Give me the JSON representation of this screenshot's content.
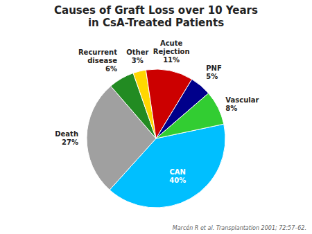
{
  "chart_data": {
    "type": "pie",
    "title": "Causes of Graft Loss over 10 Years",
    "subtitle": "in CsA-Treated Patients",
    "categories": [
      "CAN",
      "Death",
      "Recurrent disease",
      "Other",
      "Acute Rejection",
      "PNF",
      "Vascular"
    ],
    "values": [
      40,
      27,
      6,
      3,
      11,
      5,
      8
    ],
    "value_labels": [
      "40%",
      "27%",
      "6%",
      "3%",
      "11%",
      "5%",
      "8%"
    ],
    "colors": [
      "#00BFFF",
      "#A0A0A0",
      "#228B22",
      "#FFD700",
      "#CC0000",
      "#00008B",
      "#32CD32"
    ],
    "data_labels": true,
    "annotations": [
      "Marcén R et al. Transplantation 2001; 72:57–62."
    ]
  }
}
